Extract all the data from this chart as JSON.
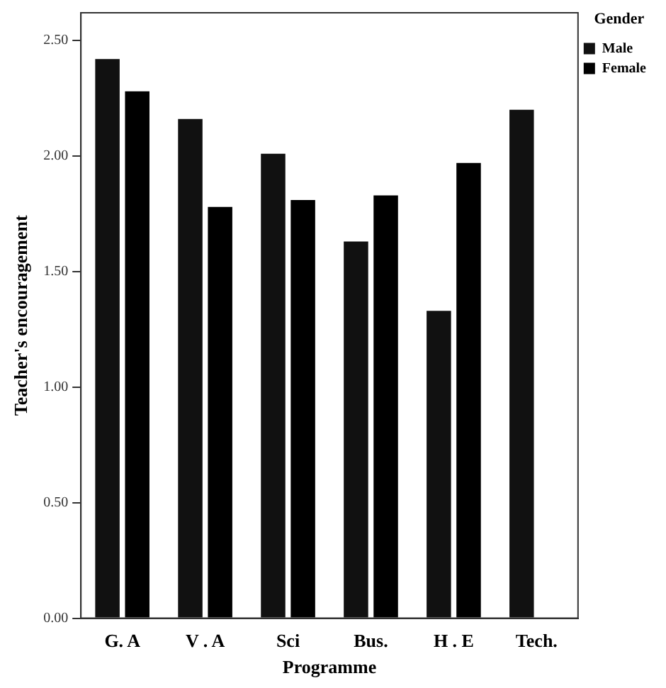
{
  "chart_data": {
    "type": "bar",
    "xlabel": "Programme",
    "ylabel": "Teacher's encouragement",
    "legend_title": "Gender",
    "legend": "right",
    "grid": false,
    "categories": [
      "G. A",
      "V . A",
      "Sci",
      "Bus.",
      "H . E",
      "Tech."
    ],
    "series": [
      {
        "name": "Male",
        "color": "#111111",
        "values": [
          2.42,
          2.16,
          2.01,
          1.63,
          1.33,
          2.2
        ]
      },
      {
        "name": "Female",
        "color": "#000000",
        "values": [
          2.28,
          1.78,
          1.81,
          1.83,
          1.97,
          null
        ]
      }
    ],
    "ylim": [
      0,
      2.62
    ],
    "yticks": [
      {
        "value": 0,
        "label": "0.00"
      },
      {
        "value": 0.5,
        "label": "0.50"
      },
      {
        "value": 1,
        "label": "1.00"
      },
      {
        "value": 1.5,
        "label": "1.50"
      },
      {
        "value": 2,
        "label": "2.00"
      },
      {
        "value": 2.5,
        "label": "2.50"
      }
    ]
  }
}
